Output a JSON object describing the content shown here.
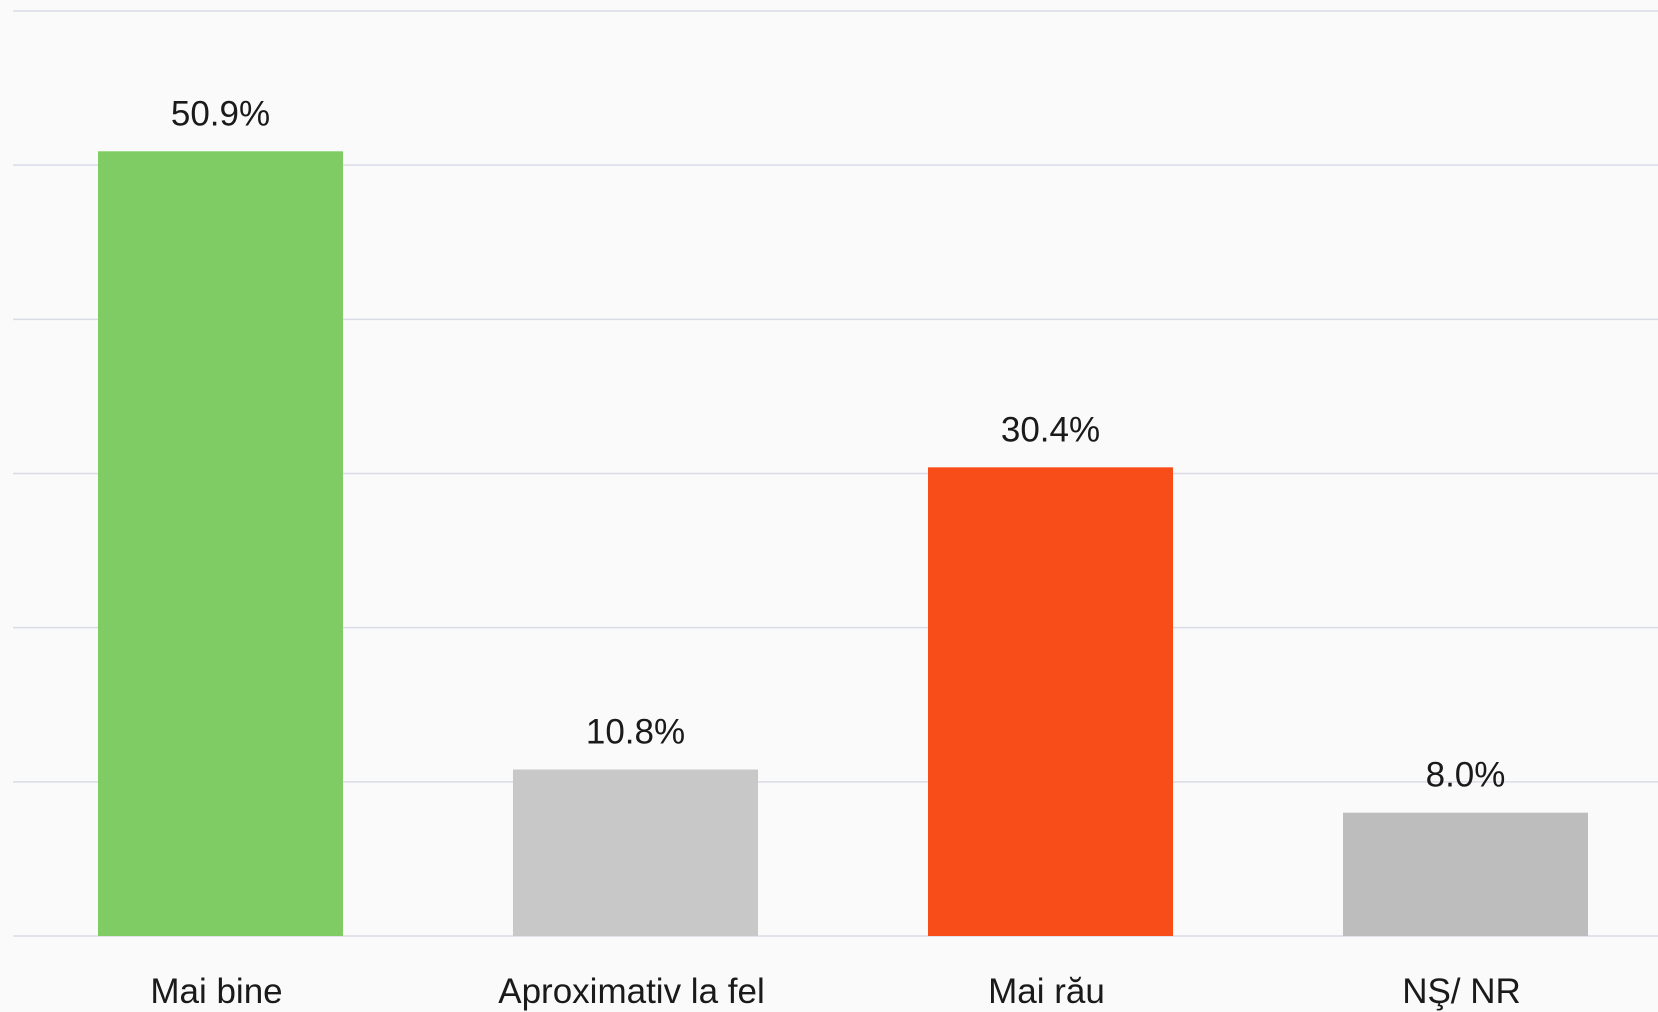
{
  "chart_data": {
    "type": "bar",
    "categories": [
      "Mai bine",
      "Aproximativ la fel",
      "Mai rău",
      "NŞ/ NR"
    ],
    "values": [
      50.9,
      10.8,
      30.4,
      8.0
    ],
    "value_labels": [
      "50.9%",
      "10.8%",
      "30.4%",
      "8.0%"
    ],
    "colors": [
      "#7ecc63",
      "#c8c8c8",
      "#f84c19",
      "#bdbdbd"
    ],
    "ylim": [
      0,
      60
    ],
    "yticks": [
      0,
      10,
      20,
      30,
      40,
      50,
      60
    ],
    "grid": true
  }
}
